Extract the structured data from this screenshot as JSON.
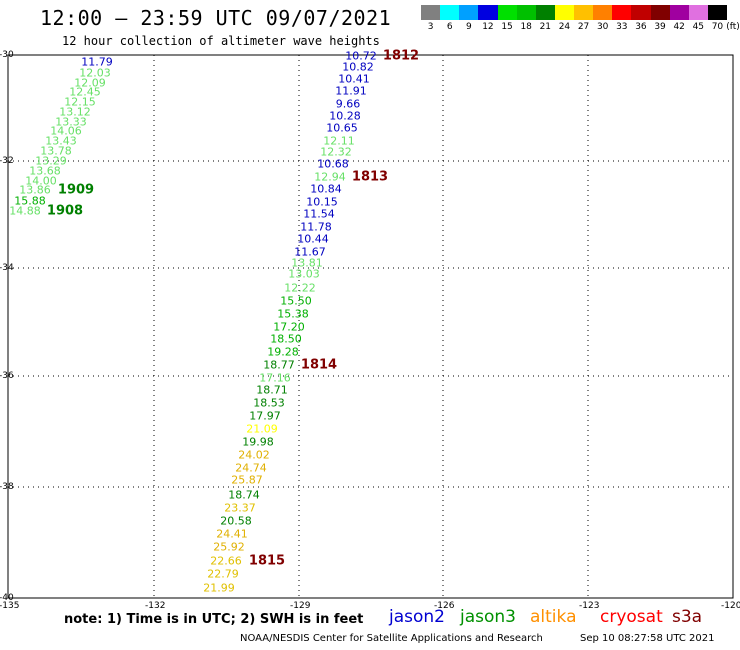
{
  "header": {
    "title": "12:00 – 23:59 UTC 09/07/2021",
    "subtitle": "12 hour collection of altimeter wave heights"
  },
  "legend": {
    "unit": "(ft)",
    "items": [
      {
        "label": "3",
        "color": "#808080"
      },
      {
        "label": "6",
        "color": "#00ffff"
      },
      {
        "label": "9",
        "color": "#00a0ff"
      },
      {
        "label": "12",
        "color": "#0000e0"
      },
      {
        "label": "15",
        "color": "#00e000"
      },
      {
        "label": "18",
        "color": "#00c000"
      },
      {
        "label": "21",
        "color": "#008000"
      },
      {
        "label": "24",
        "color": "#ffff00"
      },
      {
        "label": "27",
        "color": "#ffc000"
      },
      {
        "label": "30",
        "color": "#ff8000"
      },
      {
        "label": "33",
        "color": "#ff0000"
      },
      {
        "label": "36",
        "color": "#c00000"
      },
      {
        "label": "39",
        "color": "#800000"
      },
      {
        "label": "42",
        "color": "#a000a0"
      },
      {
        "label": "45",
        "color": "#e070e0"
      },
      {
        "label": "70",
        "color": "#000000"
      }
    ]
  },
  "axes": {
    "lon_ticks": [
      "-135",
      "-132",
      "-129",
      "-126",
      "-123",
      "-120"
    ],
    "lat_ticks": [
      "-30",
      "-32",
      "-34",
      "-36",
      "-38",
      "-40"
    ]
  },
  "tracks": [
    {
      "id": "1909",
      "label": "1909",
      "color": "#008000"
    },
    {
      "id": "1908",
      "label": "1908",
      "color": "#008000"
    },
    {
      "id": "1812",
      "label": "1812",
      "color": "#800000"
    },
    {
      "id": "1813",
      "label": "1813",
      "color": "#800000"
    },
    {
      "id": "1814",
      "label": "1814",
      "color": "#800000"
    },
    {
      "id": "1815",
      "label": "1815",
      "color": "#800000"
    }
  ],
  "observations": [
    {
      "value": "11.79",
      "color": "#0000c0"
    },
    {
      "value": "12.03",
      "color": "#66e066"
    },
    {
      "value": "12.09",
      "color": "#66e066"
    },
    {
      "value": "12.45",
      "color": "#66e066"
    },
    {
      "value": "12.15",
      "color": "#66e066"
    },
    {
      "value": "13.12",
      "color": "#66e066"
    },
    {
      "value": "13.33",
      "color": "#66e066"
    },
    {
      "value": "14.06",
      "color": "#66e066"
    },
    {
      "value": "13.43",
      "color": "#66e066"
    },
    {
      "value": "13.78",
      "color": "#66e066"
    },
    {
      "value": "13.29",
      "color": "#66e066"
    },
    {
      "value": "13.68",
      "color": "#66e066"
    },
    {
      "value": "14.00",
      "color": "#66e066"
    },
    {
      "value": "13.86",
      "color": "#66e066"
    },
    {
      "value": "15.88",
      "color": "#00b000"
    },
    {
      "value": "14.88",
      "color": "#66e066"
    },
    {
      "value": "10.72",
      "color": "#0000c0"
    },
    {
      "value": "10.82",
      "color": "#0000c0"
    },
    {
      "value": "10.41",
      "color": "#0000c0"
    },
    {
      "value": "11.91",
      "color": "#0000c0"
    },
    {
      "value": "9.66",
      "color": "#0000c0"
    },
    {
      "value": "10.28",
      "color": "#0000c0"
    },
    {
      "value": "10.65",
      "color": "#0000c0"
    },
    {
      "value": "12.11",
      "color": "#66e066"
    },
    {
      "value": "12.32",
      "color": "#66e066"
    },
    {
      "value": "10.68",
      "color": "#0000c0"
    },
    {
      "value": "12.94",
      "color": "#66e066"
    },
    {
      "value": "10.84",
      "color": "#0000c0"
    },
    {
      "value": "10.15",
      "color": "#0000c0"
    },
    {
      "value": "11.54",
      "color": "#0000c0"
    },
    {
      "value": "11.78",
      "color": "#0000c0"
    },
    {
      "value": "10.44",
      "color": "#0000c0"
    },
    {
      "value": "11.67",
      "color": "#0000c0"
    },
    {
      "value": "13.81",
      "color": "#66e066"
    },
    {
      "value": "13.03",
      "color": "#66e066"
    },
    {
      "value": "12.22",
      "color": "#66e066"
    },
    {
      "value": "15.50",
      "color": "#00b000"
    },
    {
      "value": "15.38",
      "color": "#00b000"
    },
    {
      "value": "17.20",
      "color": "#00b000"
    },
    {
      "value": "18.50",
      "color": "#00b000"
    },
    {
      "value": "19.28",
      "color": "#00b000"
    },
    {
      "value": "18.77",
      "color": "#008000"
    },
    {
      "value": "17.16",
      "color": "#66e066"
    },
    {
      "value": "18.71",
      "color": "#008000"
    },
    {
      "value": "18.53",
      "color": "#008000"
    },
    {
      "value": "17.97",
      "color": "#008000"
    },
    {
      "value": "21.09",
      "color": "#ffff00"
    },
    {
      "value": "19.98",
      "color": "#008000"
    },
    {
      "value": "24.02",
      "color": "#e0b000"
    },
    {
      "value": "24.74",
      "color": "#e0b000"
    },
    {
      "value": "25.87",
      "color": "#e0b000"
    },
    {
      "value": "18.74",
      "color": "#008000"
    },
    {
      "value": "23.37",
      "color": "#e0c000"
    },
    {
      "value": "20.58",
      "color": "#008000"
    },
    {
      "value": "24.41",
      "color": "#e0b000"
    },
    {
      "value": "25.92",
      "color": "#e0b000"
    },
    {
      "value": "22.66",
      "color": "#e0c000"
    },
    {
      "value": "22.79",
      "color": "#e0c000"
    },
    {
      "value": "21.99",
      "color": "#e0c000"
    }
  ],
  "footer": {
    "note": "note:  1) Time is in UTC;  2) SWH is in feet",
    "satellites": [
      {
        "name": "jason2",
        "color": "#0000d0"
      },
      {
        "name": "jason3",
        "color": "#009000"
      },
      {
        "name": "altika",
        "color": "#ff9000"
      },
      {
        "name": "cryosat",
        "color": "#ff0000"
      },
      {
        "name": "s3a",
        "color": "#800000"
      }
    ],
    "credit": "NOAA/NESDIS Center for Satellite Applications and Research",
    "timestamp": "Sep 10 08:27:58 UTC 2021"
  }
}
